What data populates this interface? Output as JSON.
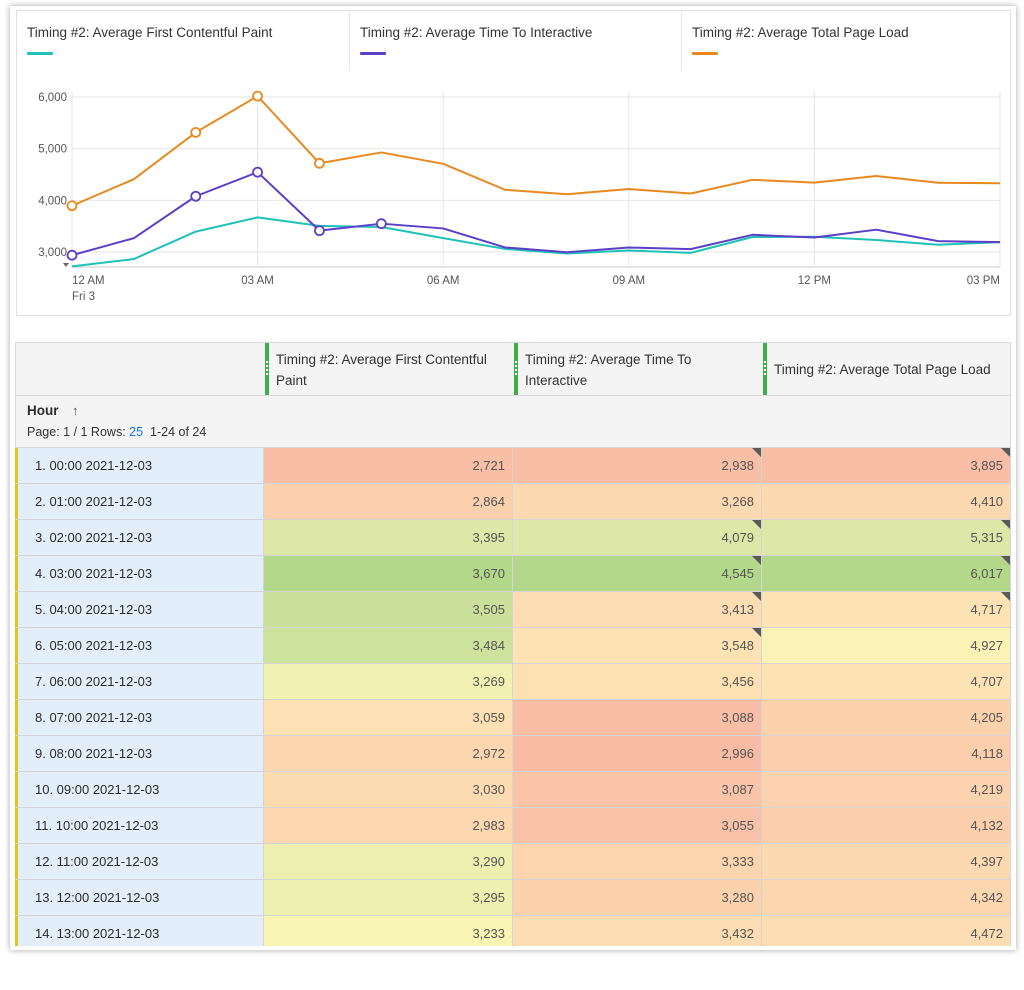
{
  "chart_data": {
    "type": "line",
    "x": [
      "12 AM",
      "01 AM",
      "02 AM",
      "03 AM",
      "04 AM",
      "05 AM",
      "06 AM",
      "07 AM",
      "08 AM",
      "09 AM",
      "10 AM",
      "11 AM",
      "12 PM",
      "01 PM",
      "02 PM",
      "03 PM"
    ],
    "x_tick_labels": [
      "12 AM",
      "03 AM",
      "06 AM",
      "09 AM",
      "12 PM",
      "03 PM"
    ],
    "x_sublabel": "Fri  3",
    "ylim": [
      3000,
      6000
    ],
    "y_tick_labels": [
      "6,000",
      "5,000",
      "4,000",
      "3,000"
    ],
    "series": [
      {
        "name": "Timing #2: Average First Contentful Paint",
        "color": "#1fc1b8",
        "values": [
          2721,
          2864,
          3395,
          3670,
          3505,
          3484,
          3269,
          3059,
          2972,
          3030,
          2983,
          3290,
          3295,
          3233,
          3140,
          3190
        ],
        "markers": []
      },
      {
        "name": "Timing #2: Average Time To Interactive",
        "color": "#5b3fc9",
        "values": [
          2938,
          3268,
          4079,
          4545,
          3413,
          3548,
          3456,
          3088,
          2996,
          3087,
          3055,
          3333,
          3280,
          3432,
          3210,
          3190
        ],
        "markers": [
          0,
          2,
          3,
          4,
          5
        ]
      },
      {
        "name": "Timing #2: Average Total Page Load",
        "color": "#e8891f",
        "values": [
          3895,
          4410,
          5315,
          6017,
          4717,
          4927,
          4707,
          4205,
          4118,
          4219,
          4132,
          4397,
          4342,
          4472,
          4340,
          4330
        ],
        "markers": [
          0,
          2,
          3,
          4
        ]
      }
    ]
  },
  "table": {
    "columns": [
      "Timing #2: Average First Contentful Paint",
      "Timing #2: Average Time To Interactive",
      "Timing #2: Average Total Page Load"
    ],
    "dimension_label": "Hour",
    "sort_icon": "↑",
    "pager_prefix": "Page: 1 / 1  Rows:",
    "rows_per_page": "25",
    "range_text": "1-24 of 24",
    "rows": [
      {
        "label": "1.  00:00 2021-12-03",
        "v": [
          "2,721",
          "2,938",
          "3,895"
        ],
        "c": [
          "#f9bfa6",
          "#f9bfa6",
          "#f9bfa6"
        ],
        "flag": [
          false,
          true,
          true
        ]
      },
      {
        "label": "2.  01:00 2021-12-03",
        "v": [
          "2,864",
          "3,268",
          "4,410"
        ],
        "c": [
          "#fbd0ad",
          "#fcd9b0",
          "#fcd9b0"
        ],
        "flag": [
          false,
          false,
          false
        ]
      },
      {
        "label": "3.  02:00 2021-12-03",
        "v": [
          "3,395",
          "4,079",
          "5,315"
        ],
        "c": [
          "#dde8a8",
          "#dde8a8",
          "#dde8a8"
        ],
        "flag": [
          false,
          true,
          true
        ]
      },
      {
        "label": "4.  03:00 2021-12-03",
        "v": [
          "3,670",
          "4,545",
          "6,017"
        ],
        "c": [
          "#b4d88a",
          "#b4d88a",
          "#b4d88a"
        ],
        "flag": [
          false,
          true,
          true
        ]
      },
      {
        "label": "5.  04:00 2021-12-03",
        "v": [
          "3,505",
          "3,413",
          "4,717"
        ],
        "c": [
          "#cbe19b",
          "#fcdcb2",
          "#fde3b4"
        ],
        "flag": [
          false,
          true,
          true
        ]
      },
      {
        "label": "6.  05:00 2021-12-03",
        "v": [
          "3,484",
          "3,548",
          "4,927"
        ],
        "c": [
          "#cde29c",
          "#fde3b4",
          "#fbf3b5"
        ],
        "flag": [
          false,
          true,
          false
        ]
      },
      {
        "label": "7.  06:00 2021-12-03",
        "v": [
          "3,269",
          "3,456",
          "4,707"
        ],
        "c": [
          "#f1f1b2",
          "#fde1b3",
          "#fde3b4"
        ],
        "flag": [
          false,
          false,
          false
        ]
      },
      {
        "label": "8.  07:00 2021-12-03",
        "v": [
          "3,059",
          "3,088",
          "4,205"
        ],
        "c": [
          "#fde0b3",
          "#f9bfa6",
          "#fcd2ad"
        ],
        "flag": [
          false,
          false,
          false
        ]
      },
      {
        "label": "9.  08:00 2021-12-03",
        "v": [
          "2,972",
          "2,996",
          "4,118"
        ],
        "c": [
          "#fcd6af",
          "#f9bba4",
          "#fcceab"
        ],
        "flag": [
          false,
          false,
          false
        ]
      },
      {
        "label": "10.  09:00 2021-12-03",
        "v": [
          "3,030",
          "3,087",
          "4,219"
        ],
        "c": [
          "#fcdbb1",
          "#f9c4a8",
          "#fcd3ae"
        ],
        "flag": [
          false,
          false,
          false
        ]
      },
      {
        "label": "11.  10:00 2021-12-03",
        "v": [
          "2,983",
          "3,055",
          "4,132"
        ],
        "c": [
          "#fcd7af",
          "#f9c1a7",
          "#fbcfac"
        ],
        "flag": [
          false,
          false,
          false
        ]
      },
      {
        "label": "12.  11:00 2021-12-03",
        "v": [
          "3,290",
          "3,333",
          "4,397"
        ],
        "c": [
          "#eef0b0",
          "#fcd5ae",
          "#fcd9b0"
        ],
        "flag": [
          false,
          false,
          false
        ]
      },
      {
        "label": "13.  12:00 2021-12-03",
        "v": [
          "3,295",
          "3,280",
          "4,342"
        ],
        "c": [
          "#eef0b0",
          "#fcd2ad",
          "#fcd6af"
        ],
        "flag": [
          false,
          false,
          false
        ]
      },
      {
        "label": "14.  13:00 2021-12-03",
        "v": [
          "3,233",
          "3,432",
          "4,472"
        ],
        "c": [
          "#f7f4b4",
          "#fcdcb2",
          "#fcdcb2"
        ],
        "flag": [
          false,
          false,
          false
        ]
      }
    ]
  }
}
